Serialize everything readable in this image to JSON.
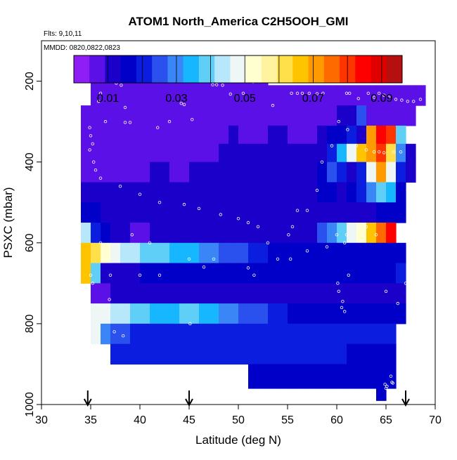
{
  "chart_data": {
    "type": "heatmap",
    "title": "ATOM1 North_America C2H5OOH_GMI",
    "flights_label": "Flts: 9,10,11",
    "dates_label": "MMDD: 0820,0822,0823",
    "xlabel": "Latitude (deg N)",
    "ylabel": "PSXC (mbar)",
    "xlim": [
      30,
      70
    ],
    "ylim": [
      1000,
      100
    ],
    "x_ticks": [
      "30",
      "35",
      "40",
      "45",
      "50",
      "55",
      "60",
      "65",
      "70"
    ],
    "y_ticks": [
      "200",
      "400",
      "600",
      "800",
      "1000"
    ],
    "colorbar": {
      "range": [
        0,
        0.096
      ],
      "tick_labels": [
        "0.01",
        "0.03",
        "0.05",
        "0.07",
        "0.09"
      ],
      "colors": [
        "#8f1df6",
        "#5a10e6",
        "#1a00c8",
        "#0000c8",
        "#0b1ee0",
        "#2a50ee",
        "#3a86f6",
        "#17b7ff",
        "#60cff8",
        "#b6e7fa",
        "#eef6f6",
        "#ffffd0",
        "#fff3a0",
        "#ffe04a",
        "#ffc400",
        "#ff9a00",
        "#ff6a00",
        "#ff3500",
        "#ff0000",
        "#e00000",
        "#b60f0f"
      ]
    },
    "arrows_latitude": [
      34.7,
      45.0,
      67.0
    ],
    "rows": [
      {
        "p": [
          165,
          210
        ],
        "x": [
          35,
          53
        ],
        "v": [
          0.003,
          0.003,
          0.003,
          0.003,
          0.003,
          0.003,
          0.003,
          0.003,
          0.003,
          0.003,
          0.003,
          0.003,
          0.003,
          0.003,
          0.003,
          0.003,
          0.003,
          0.003
        ]
      },
      {
        "p": [
          210,
          260
        ],
        "x": [
          35,
          69
        ],
        "v": [
          0.003,
          0.003,
          0.004,
          0.004,
          0.004,
          0.004,
          0.004,
          0.005,
          0.005,
          0.005,
          0.005,
          0.005,
          0.005,
          0.006,
          0.005,
          0.005,
          0.004,
          0.004,
          0.003,
          0.003,
          0.003,
          0.003,
          0.003,
          0.003,
          0.003,
          0.003,
          0.003,
          0.003,
          0.003,
          0.003,
          0.003,
          0.003,
          0.003,
          0.003
        ]
      },
      {
        "p": [
          260,
          310
        ],
        "x": [
          34,
          68
        ],
        "v": [
          0.003,
          0.004,
          0.005,
          0.005,
          0.005,
          0.005,
          0.006,
          0.007,
          0.006,
          0.006,
          0.006,
          0.006,
          0.006,
          0.006,
          0.007,
          0.007,
          0.006,
          0.006,
          0.005,
          0.005,
          0.005,
          0.005,
          0.006,
          0.006,
          0.005,
          0.005,
          0.008,
          0.01,
          0.022,
          0.007,
          0.005,
          0.005,
          0.005,
          0.005
        ]
      },
      {
        "p": [
          310,
          355
        ],
        "x": [
          34,
          67
        ],
        "v": [
          0.003,
          0.004,
          0.005,
          0.006,
          0.006,
          0.006,
          0.006,
          0.006,
          0.006,
          0.006,
          0.007,
          0.007,
          0.007,
          0.007,
          0.007,
          0.008,
          0.007,
          0.007,
          0.007,
          0.008,
          0.008,
          0.007,
          0.007,
          0.007,
          0.008,
          0.013,
          0.016,
          0.017,
          0.009,
          0.072,
          0.088,
          0.08,
          0.04
        ]
      },
      {
        "p": [
          355,
          400
        ],
        "x": [
          34,
          68
        ],
        "v": [
          0.004,
          0.005,
          0.006,
          0.006,
          0.006,
          0.006,
          0.006,
          0.006,
          0.006,
          0.007,
          0.007,
          0.007,
          0.007,
          0.007,
          0.008,
          0.008,
          0.008,
          0.008,
          0.008,
          0.008,
          0.009,
          0.009,
          0.009,
          0.009,
          0.008,
          0.02,
          0.035,
          0.05,
          0.065,
          0.07,
          0.082,
          0.06,
          0.03,
          0.01
        ]
      },
      {
        "p": [
          400,
          450
        ],
        "x": [
          34,
          68
        ],
        "v": [
          0.006,
          0.006,
          0.007,
          0.007,
          0.007,
          0.007,
          0.007,
          0.008,
          0.008,
          0.007,
          0.007,
          0.008,
          0.008,
          0.008,
          0.009,
          0.009,
          0.009,
          0.009,
          0.009,
          0.009,
          0.009,
          0.009,
          0.009,
          0.01,
          0.015,
          0.025,
          0.02,
          0.01,
          0.02,
          0.05,
          0.07,
          0.05,
          0.02,
          0.008
        ]
      },
      {
        "p": [
          450,
          500
        ],
        "x": [
          34,
          67
        ],
        "v": [
          0.009,
          0.009,
          0.009,
          0.009,
          0.009,
          0.009,
          0.009,
          0.009,
          0.009,
          0.009,
          0.009,
          0.009,
          0.009,
          0.009,
          0.009,
          0.009,
          0.009,
          0.009,
          0.009,
          0.009,
          0.009,
          0.009,
          0.009,
          0.01,
          0.012,
          0.012,
          0.01,
          0.012,
          0.02,
          0.03,
          0.04,
          0.035,
          0.015
        ]
      },
      {
        "p": [
          500,
          550
        ],
        "x": [
          34,
          67
        ],
        "v": [
          0.013,
          0.012,
          0.011,
          0.011,
          0.011,
          0.011,
          0.011,
          0.011,
          0.011,
          0.011,
          0.011,
          0.011,
          0.011,
          0.011,
          0.011,
          0.011,
          0.011,
          0.011,
          0.011,
          0.011,
          0.011,
          0.011,
          0.011,
          0.011,
          0.011,
          0.011,
          0.011,
          0.011,
          0.011,
          0.011,
          0.012,
          0.012,
          0.013
        ]
      },
      {
        "p": [
          550,
          600
        ],
        "x": [
          34,
          66
        ],
        "v": [
          0.045,
          0.02,
          0.014,
          0.01,
          0.008,
          0.007,
          0.007,
          0.009,
          0.009,
          0.01,
          0.01,
          0.01,
          0.01,
          0.01,
          0.01,
          0.01,
          0.01,
          0.01,
          0.01,
          0.01,
          0.01,
          0.01,
          0.01,
          0.01,
          0.025,
          0.03,
          0.04,
          0.05,
          0.055,
          0.065,
          0.075,
          0.085
        ]
      },
      {
        "p": [
          600,
          650
        ],
        "x": [
          34,
          67
        ],
        "v": [
          0.068,
          0.06,
          0.055,
          0.05,
          0.045,
          0.042,
          0.04,
          0.04,
          0.038,
          0.036,
          0.034,
          0.032,
          0.03,
          0.028,
          0.026,
          0.024,
          0.022,
          0.02,
          0.018,
          0.016,
          0.014,
          0.013,
          0.012,
          0.012,
          0.012,
          0.012,
          0.012,
          0.012,
          0.012,
          0.012,
          0.012,
          0.012,
          0.012
        ]
      },
      {
        "p": [
          650,
          700
        ],
        "x": [
          34,
          67
        ],
        "v": [
          0.068,
          0.04,
          0.011,
          0.011,
          0.011,
          0.011,
          0.012,
          0.013,
          0.013,
          0.014,
          0.014,
          0.015,
          0.016,
          0.015,
          0.014,
          0.013,
          0.012,
          0.012,
          0.012,
          0.012,
          0.012,
          0.012,
          0.012,
          0.012,
          0.012,
          0.013,
          0.014,
          0.015,
          0.016,
          0.016,
          0.016,
          0.016,
          0.017
        ]
      },
      {
        "p": [
          700,
          750
        ],
        "x": [
          35,
          67
        ],
        "v": [
          0.005,
          0.006,
          0.008,
          0.009,
          0.01,
          0.01,
          0.01,
          0.01,
          0.01,
          0.01,
          0.01,
          0.01,
          0.01,
          0.01,
          0.01,
          0.01,
          0.01,
          0.01,
          0.01,
          0.01,
          0.01,
          0.01,
          0.01,
          0.01,
          0.01,
          0.01,
          0.01,
          0.01,
          0.01,
          0.01,
          0.01,
          0.01
        ]
      },
      {
        "p": [
          750,
          800
        ],
        "x": [
          35,
          67
        ],
        "v": [
          0.05,
          0.047,
          0.045,
          0.042,
          0.04,
          0.038,
          0.036,
          0.035,
          0.036,
          0.037,
          0.038,
          0.036,
          0.033,
          0.03,
          0.028,
          0.026,
          0.024,
          0.022,
          0.02,
          0.018,
          0.016,
          0.015,
          0.014,
          0.014,
          0.014,
          0.014,
          0.014,
          0.014,
          0.014,
          0.015,
          0.015,
          0.015
        ]
      },
      {
        "p": [
          800,
          850
        ],
        "x": [
          35,
          66
        ],
        "v": [
          0.05,
          0.028,
          0.022,
          0.022,
          0.021,
          0.021,
          0.021,
          0.021,
          0.021,
          0.021,
          0.021,
          0.021,
          0.021,
          0.021,
          0.021,
          0.021,
          0.021,
          0.021,
          0.021,
          0.02,
          0.02,
          0.02,
          0.02,
          0.02,
          0.02,
          0.02,
          0.02,
          0.02,
          0.02,
          0.019,
          0.019
        ]
      },
      {
        "p": [
          850,
          900
        ],
        "x": [
          37,
          66
        ],
        "v": [
          0.018,
          0.018,
          0.018,
          0.018,
          0.018,
          0.018,
          0.018,
          0.018,
          0.018,
          0.018,
          0.018,
          0.018,
          0.018,
          0.018,
          0.018,
          0.018,
          0.018,
          0.018,
          0.018,
          0.018,
          0.018,
          0.017,
          0.017,
          0.017,
          0.016,
          0.016,
          0.016,
          0.016,
          0.016
        ]
      },
      {
        "p": [
          900,
          960
        ],
        "x": [
          51,
          66
        ],
        "v": [
          0.013,
          0.013,
          0.013,
          0.013,
          0.013,
          0.013,
          0.013,
          0.013,
          0.013,
          0.013,
          0.013,
          0.013,
          0.012,
          0.012,
          0.012
        ]
      },
      {
        "p": [
          960,
          990
        ],
        "x": [
          64,
          65
        ],
        "v": [
          0.012
        ]
      }
    ],
    "points": [
      [
        35.6,
        195
      ],
      [
        36.1,
        195
      ],
      [
        36.6,
        195
      ],
      [
        37.1,
        195
      ],
      [
        37.6,
        205
      ],
      [
        38.1,
        210
      ],
      [
        36.0,
        230
      ],
      [
        35.8,
        250
      ],
      [
        38.5,
        265
      ],
      [
        34.9,
        315
      ],
      [
        35.0,
        335
      ],
      [
        35.2,
        355
      ],
      [
        36.5,
        300
      ],
      [
        38.5,
        302
      ],
      [
        39.0,
        302
      ],
      [
        41.8,
        315
      ],
      [
        43.0,
        300
      ],
      [
        45.3,
        295
      ],
      [
        44.2,
        255
      ],
      [
        44.5,
        258
      ],
      [
        47.4,
        209
      ],
      [
        47.8,
        209
      ],
      [
        48.4,
        210
      ],
      [
        49.2,
        232
      ],
      [
        50.5,
        230
      ],
      [
        51.5,
        202
      ],
      [
        53.5,
        260
      ],
      [
        55.4,
        230
      ],
      [
        56.0,
        230
      ],
      [
        56.5,
        230
      ],
      [
        57.2,
        230
      ],
      [
        58.0,
        231
      ],
      [
        58.6,
        230
      ],
      [
        61.0,
        230
      ],
      [
        61.3,
        230
      ],
      [
        62.2,
        243
      ],
      [
        63.2,
        230
      ],
      [
        63.8,
        240
      ],
      [
        64.3,
        230
      ],
      [
        64.8,
        235
      ],
      [
        65.3,
        240
      ],
      [
        66.0,
        245
      ],
      [
        66.6,
        247
      ],
      [
        67.2,
        250
      ],
      [
        67.8,
        250
      ],
      [
        68.5,
        245
      ],
      [
        69.2,
        240
      ],
      [
        34.9,
        370
      ],
      [
        35.3,
        400
      ],
      [
        35.5,
        420
      ],
      [
        36.0,
        440
      ],
      [
        38.0,
        460
      ],
      [
        40.0,
        480
      ],
      [
        42.0,
        500
      ],
      [
        44.5,
        505
      ],
      [
        46.0,
        515
      ],
      [
        48.2,
        530
      ],
      [
        50.0,
        540
      ],
      [
        51.0,
        550
      ],
      [
        52.0,
        560
      ],
      [
        53.0,
        600
      ],
      [
        55.1,
        580
      ],
      [
        55.5,
        560
      ],
      [
        56.0,
        520
      ],
      [
        57.0,
        520
      ],
      [
        58.0,
        470
      ],
      [
        58.5,
        400
      ],
      [
        59.5,
        360
      ],
      [
        60.2,
        300
      ],
      [
        61.1,
        320
      ],
      [
        62.0,
        360
      ],
      [
        63.0,
        370
      ],
      [
        63.8,
        375
      ],
      [
        64.3,
        375
      ],
      [
        64.8,
        377
      ],
      [
        65.8,
        375
      ],
      [
        66.5,
        375
      ],
      [
        67.2,
        470
      ],
      [
        60.0,
        580
      ],
      [
        60.8,
        600
      ],
      [
        61.2,
        680
      ],
      [
        60.1,
        700
      ],
      [
        60.2,
        720
      ],
      [
        60.6,
        745
      ],
      [
        60.5,
        760
      ],
      [
        60.8,
        770
      ],
      [
        65.0,
        720
      ],
      [
        66.2,
        750
      ],
      [
        67.0,
        700
      ],
      [
        67.5,
        720
      ],
      [
        65.5,
        930
      ],
      [
        65.6,
        945
      ],
      [
        65.7,
        947
      ],
      [
        64.9,
        950
      ],
      [
        65.1,
        955
      ],
      [
        65.0,
        960
      ],
      [
        47.5,
        640
      ],
      [
        51.0,
        662
      ],
      [
        51.6,
        680
      ],
      [
        54.0,
        640
      ],
      [
        57.0,
        620
      ],
      [
        59.0,
        610
      ],
      [
        61.0,
        580
      ],
      [
        62.2,
        560
      ],
      [
        63.0,
        560
      ],
      [
        64.0,
        580
      ],
      [
        35.0,
        680
      ],
      [
        35.2,
        700
      ],
      [
        37.0,
        680
      ],
      [
        40.0,
        680
      ],
      [
        42.0,
        680
      ],
      [
        45.0,
        640
      ],
      [
        46.5,
        660
      ],
      [
        41.0,
        600
      ],
      [
        39.2,
        580
      ],
      [
        36.0,
        600
      ],
      [
        36.9,
        740
      ],
      [
        37.4,
        820
      ],
      [
        38.3,
        830
      ],
      [
        45.1,
        800
      ],
      [
        55.3,
        640
      ]
    ]
  }
}
